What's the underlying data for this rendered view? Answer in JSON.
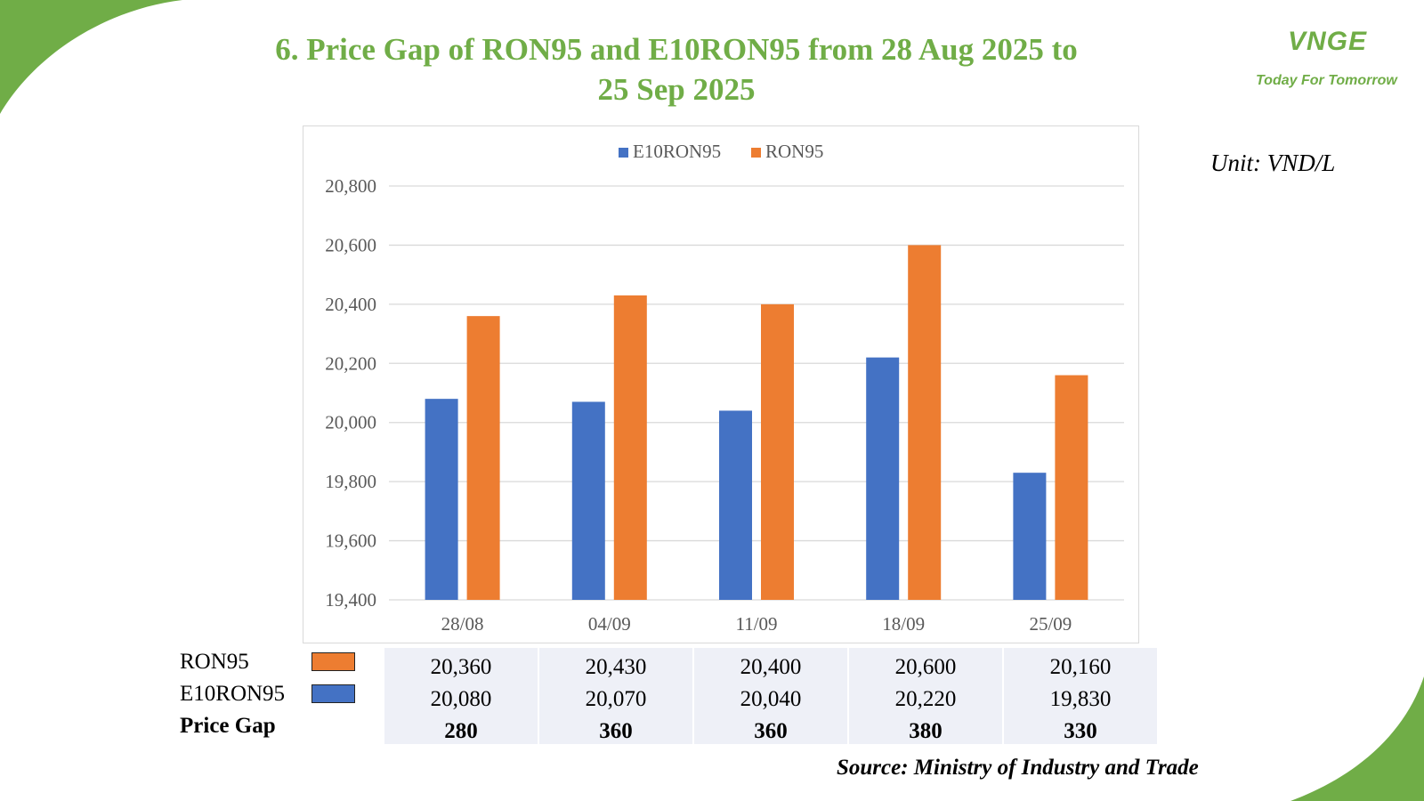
{
  "header": {
    "title_line1": "6. Price Gap of RON95 and E10RON95 from 28 Aug 2025 to",
    "title_line2": "25 Sep 2025"
  },
  "logo": {
    "mark": "VNGE",
    "tagline": "Today For Tomorrow"
  },
  "unit_label": "Unit: VND/L",
  "source_label": "Source: Ministry of Industry and Trade",
  "colors": {
    "brand_green": "#70ad47",
    "e10ron95": "#4472c4",
    "ron95": "#ed7d31",
    "grid": "#d9d9d9",
    "table_bg": "#eef0f7"
  },
  "chart_data": {
    "type": "bar",
    "categories": [
      "28/08",
      "04/09",
      "11/09",
      "18/09",
      "25/09"
    ],
    "series": [
      {
        "name": "E10RON95",
        "values": [
          20080,
          20070,
          20040,
          20220,
          19830
        ]
      },
      {
        "name": "RON95",
        "values": [
          20360,
          20430,
          20400,
          20600,
          20160
        ]
      }
    ],
    "ylim": [
      19400,
      20800
    ],
    "yticks": [
      "19,400",
      "19,600",
      "19,800",
      "20,000",
      "20,200",
      "20,400",
      "20,600",
      "20,800"
    ],
    "legend_position": "top",
    "grid": true
  },
  "table": {
    "rows": [
      {
        "label": "RON95",
        "values": [
          "20,360",
          "20,430",
          "20,400",
          "20,600",
          "20,160"
        ]
      },
      {
        "label": "E10RON95",
        "values": [
          "20,080",
          "20,070",
          "20,040",
          "20,220",
          "19,830"
        ]
      },
      {
        "label": "Price Gap",
        "values": [
          "280",
          "360",
          "360",
          "380",
          "330"
        ]
      }
    ]
  }
}
